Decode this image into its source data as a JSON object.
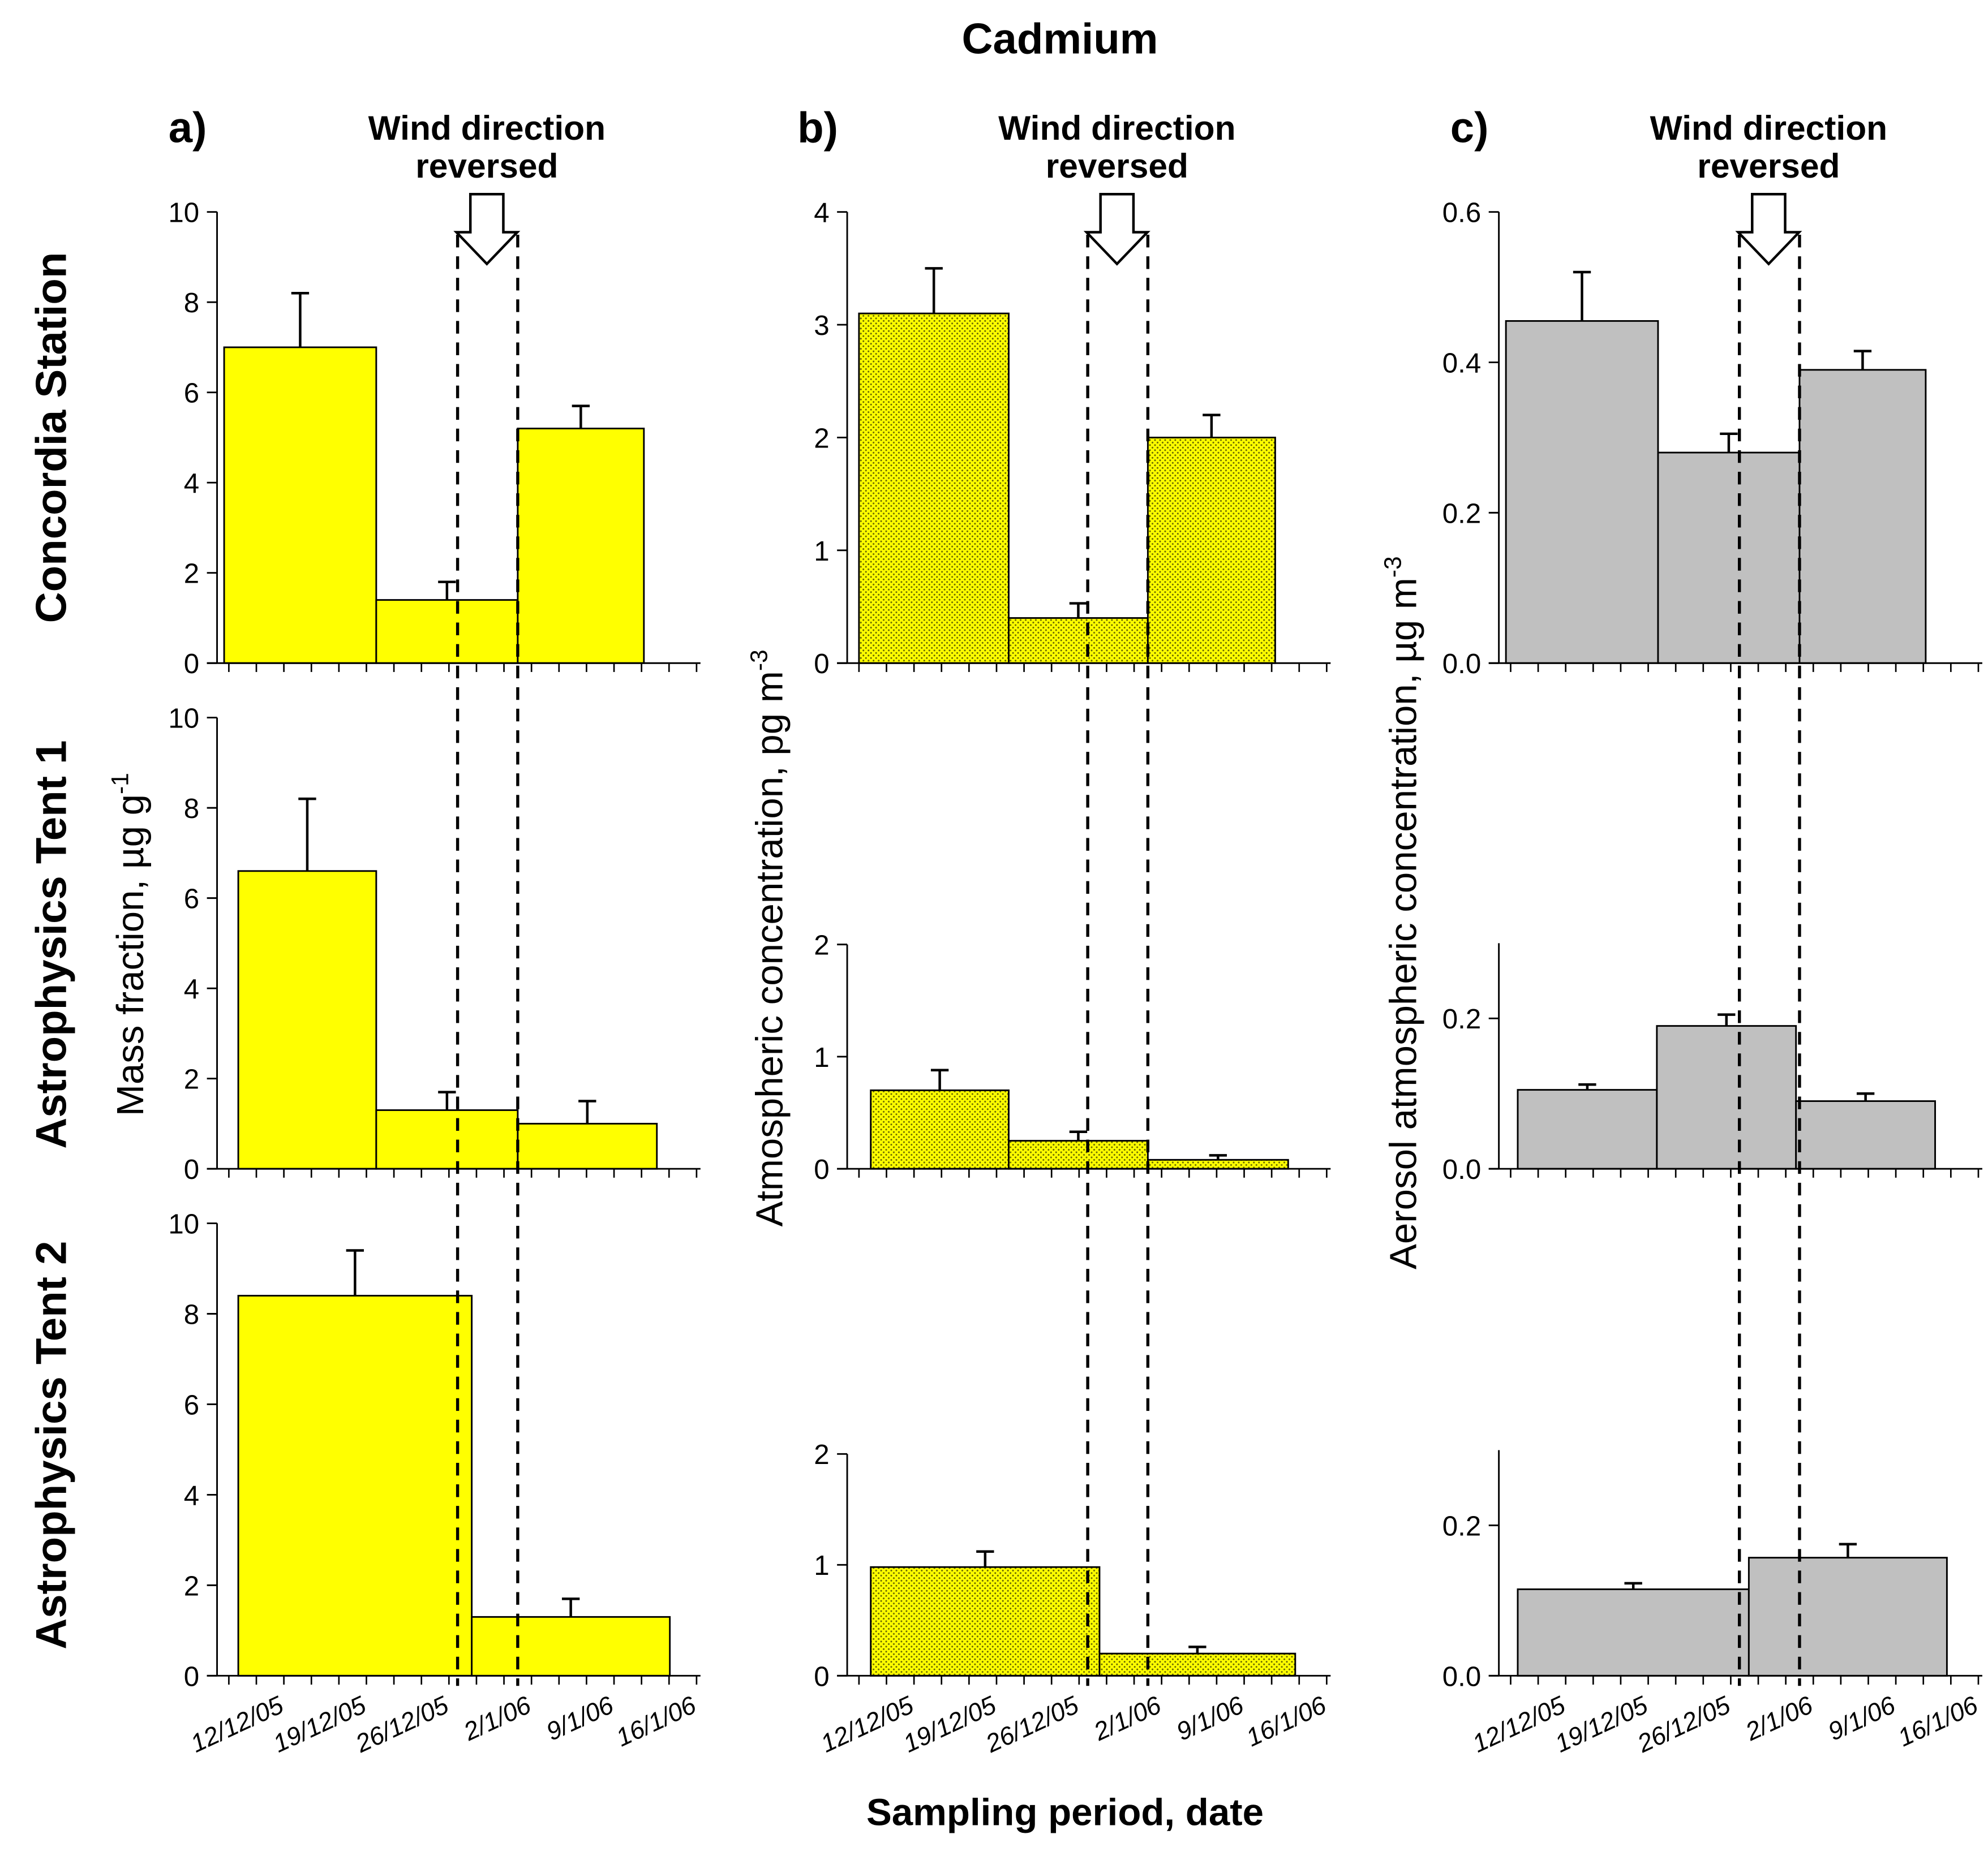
{
  "chart_data": {
    "type": "bar",
    "title": "Cadmium",
    "xlabel": "Sampling period, date",
    "x_tick_labels": [
      "12/12/05",
      "19/12/05",
      "26/12/05",
      "2/1/06",
      "9/1/06",
      "16/1/06"
    ],
    "x_tick_days": [
      0,
      7,
      14,
      21,
      28,
      35
    ],
    "xlim_days": [
      -6,
      35
    ],
    "wind_reversal_days": [
      14.4,
      19.5
    ],
    "annotation": [
      "Wind direction",
      "reversed"
    ],
    "row_labels": [
      "Concordia Station",
      "Astrophysics Tent 1",
      "Astrophysics Tent 2"
    ],
    "panels": [
      {
        "letter": "a)",
        "ylabel": "Mass fraction, µg g",
        "ylabel_sup": "-1",
        "fill": "#ffff00",
        "pattern": false,
        "rows": [
          {
            "ylim": [
              0,
              10
            ],
            "ticks": [
              "0",
              "2",
              "4",
              "6",
              "8",
              "10"
            ],
            "tick_values": [
              0,
              2,
              4,
              6,
              8,
              10
            ],
            "bars": [
              {
                "start": -5.4,
                "end": 7.5,
                "value": 7.0,
                "err": 8.2
              },
              {
                "start": 7.5,
                "end": 19.5,
                "value": 1.4,
                "err": 1.8
              },
              {
                "start": 19.5,
                "end": 30.2,
                "value": 5.2,
                "err": 5.7
              }
            ]
          },
          {
            "ylim": [
              0,
              10
            ],
            "ticks": [
              "0",
              "2",
              "4",
              "6",
              "8",
              "10"
            ],
            "tick_values": [
              0,
              2,
              4,
              6,
              8,
              10
            ],
            "bars": [
              {
                "start": -4.2,
                "end": 7.5,
                "value": 6.6,
                "err": 8.2
              },
              {
                "start": 7.5,
                "end": 19.5,
                "value": 1.3,
                "err": 1.7
              },
              {
                "start": 19.5,
                "end": 31.3,
                "value": 1.0,
                "err": 1.5
              }
            ]
          },
          {
            "ylim": [
              0,
              10
            ],
            "ticks": [
              "0",
              "2",
              "4",
              "6",
              "8",
              "10"
            ],
            "tick_values": [
              0,
              2,
              4,
              6,
              8,
              10
            ],
            "bars": [
              {
                "start": -4.2,
                "end": 15.6,
                "value": 8.4,
                "err": 9.4
              },
              {
                "start": 15.6,
                "end": 32.4,
                "value": 1.3,
                "err": 1.7
              }
            ]
          }
        ]
      },
      {
        "letter": "b)",
        "ylabel": "Atmospheric concentration, pg m",
        "ylabel_sup": "-3",
        "fill": "#ffff00",
        "pattern": true,
        "rows": [
          {
            "ylim": [
              0,
              4
            ],
            "ticks": [
              "0",
              "1",
              "2",
              "3",
              "4"
            ],
            "tick_values": [
              0,
              1,
              2,
              3,
              4
            ],
            "bars": [
              {
                "start": -5,
                "end": 7.7,
                "value": 3.1,
                "err": 3.5
              },
              {
                "start": 7.7,
                "end": 19.5,
                "value": 0.4,
                "err": 0.53
              },
              {
                "start": 19.5,
                "end": 30.3,
                "value": 2.0,
                "err": 2.2
              }
            ]
          },
          {
            "ylim": [
              0,
              2
            ],
            "ticks": [
              "0",
              "1",
              "2"
            ],
            "tick_values": [
              0,
              1,
              2
            ],
            "bars": [
              {
                "start": -4,
                "end": 7.7,
                "value": 0.7,
                "err": 0.88
              },
              {
                "start": 7.7,
                "end": 19.5,
                "value": 0.25,
                "err": 0.33
              },
              {
                "start": 19.5,
                "end": 31.4,
                "value": 0.08,
                "err": 0.12
              }
            ]
          },
          {
            "ylim": [
              0,
              2
            ],
            "ticks": [
              "0",
              "1",
              "2"
            ],
            "tick_values": [
              0,
              1,
              2
            ],
            "bars": [
              {
                "start": -4,
                "end": 15.4,
                "value": 0.98,
                "err": 1.12
              },
              {
                "start": 15.4,
                "end": 32,
                "value": 0.2,
                "err": 0.26
              }
            ]
          }
        ]
      },
      {
        "letter": "c)",
        "ylabel": "Aerosol atmospheric concentration, µg m",
        "ylabel_sup": "-3",
        "fill": "#c0c0c0",
        "pattern": false,
        "rows": [
          {
            "ylim": [
              0,
              0.6
            ],
            "ticks": [
              "0.0",
              "0.2",
              "0.4",
              "0.6"
            ],
            "tick_values": [
              0,
              0.2,
              0.4,
              0.6
            ],
            "bars": [
              {
                "start": -5.4,
                "end": 7.5,
                "value": 0.455,
                "err": 0.52
              },
              {
                "start": 7.5,
                "end": 19.5,
                "value": 0.28,
                "err": 0.305
              },
              {
                "start": 19.5,
                "end": 30.2,
                "value": 0.39,
                "err": 0.415
              }
            ]
          },
          {
            "ylim": [
              0,
              0.3
            ],
            "ticks": [
              "0.0",
              "0.2"
            ],
            "tick_values": [
              0,
              0.2
            ],
            "bars": [
              {
                "start": -4.4,
                "end": 7.4,
                "value": 0.105,
                "err": 0.112
              },
              {
                "start": 7.4,
                "end": 19.2,
                "value": 0.19,
                "err": 0.205
              },
              {
                "start": 19.2,
                "end": 31,
                "value": 0.09,
                "err": 0.1
              }
            ]
          },
          {
            "ylim": [
              0,
              0.3
            ],
            "ticks": [
              "0.0",
              "0.2"
            ],
            "tick_values": [
              0,
              0.2
            ],
            "bars": [
              {
                "start": -4.4,
                "end": 15.2,
                "value": 0.115,
                "err": 0.123
              },
              {
                "start": 15.2,
                "end": 32,
                "value": 0.157,
                "err": 0.175
              }
            ]
          }
        ]
      }
    ]
  }
}
